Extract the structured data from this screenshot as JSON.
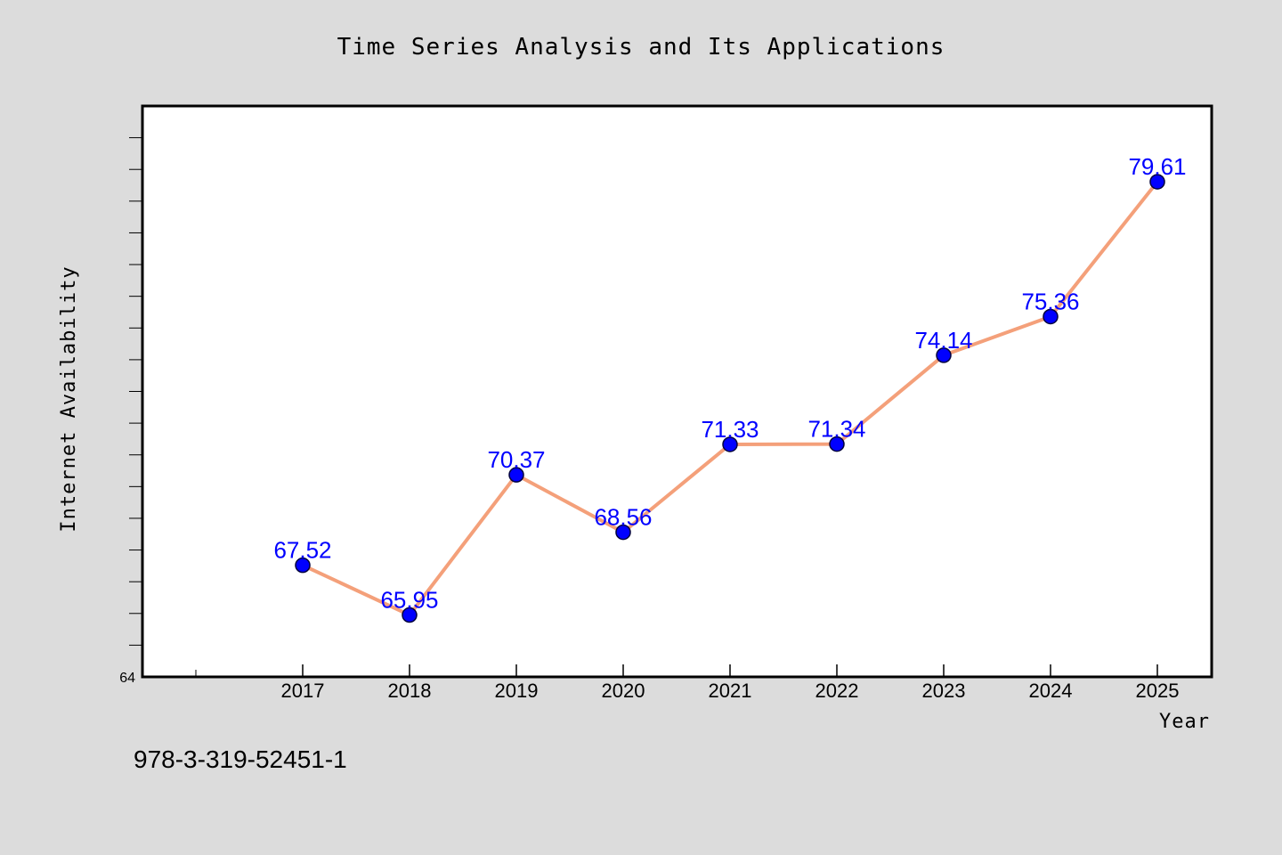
{
  "chart_data": {
    "type": "line",
    "title": "Time Series Analysis and Its Applications",
    "xlabel": "Year",
    "ylabel": "Internet Availability",
    "categories": [
      "2017",
      "2018",
      "2019",
      "2020",
      "2021",
      "2022",
      "2023",
      "2024",
      "2025"
    ],
    "values": [
      67.52,
      65.95,
      70.37,
      68.56,
      71.33,
      71.34,
      74.14,
      75.36,
      79.61
    ],
    "ylim": [
      64,
      82
    ],
    "y_tick_labels": [
      "64"
    ],
    "grid": false,
    "line_color": "#f4a07a",
    "marker_color": "#0000ff",
    "label_color": "#0000ff"
  },
  "footnote": "978-3-319-52451-1"
}
